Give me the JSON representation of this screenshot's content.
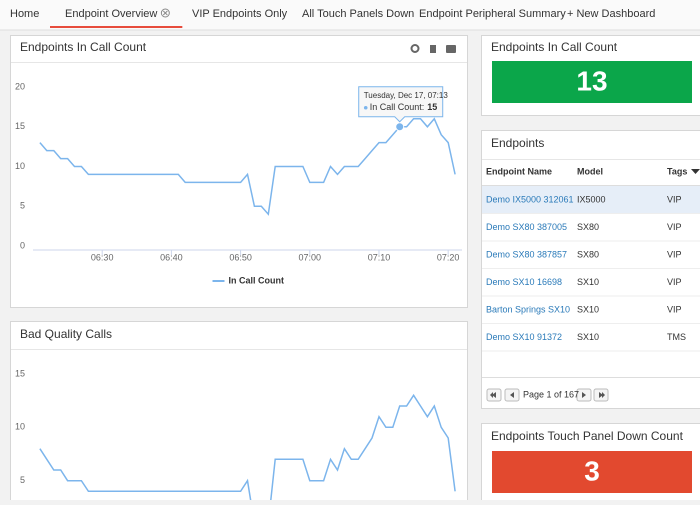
{
  "tabs": [
    "Home",
    "Endpoint Overview",
    "VIP Endpoints Only",
    "All Touch Panels Down",
    "Endpoint Peripheral Summary",
    "+ New Dashboard"
  ],
  "active_tab": 1,
  "chart_data": [
    {
      "type": "line",
      "title": "Endpoints In Call Count",
      "x": [
        "06:21",
        "06:22",
        "06:23",
        "06:24",
        "06:25",
        "06:26",
        "06:27",
        "06:28",
        "06:29",
        "06:30",
        "06:31",
        "06:32",
        "06:33",
        "06:34",
        "06:35",
        "06:36",
        "06:37",
        "06:38",
        "06:39",
        "06:40",
        "06:41",
        "06:42",
        "06:43",
        "06:44",
        "06:45",
        "06:46",
        "06:47",
        "06:48",
        "06:49",
        "06:50",
        "06:51",
        "06:52",
        "06:53",
        "06:54",
        "06:55",
        "06:56",
        "06:57",
        "06:58",
        "06:59",
        "07:00",
        "07:01",
        "07:02",
        "07:03",
        "07:04",
        "07:05",
        "07:06",
        "07:07",
        "07:08",
        "07:09",
        "07:10",
        "07:11",
        "07:12",
        "07:13",
        "07:14",
        "07:15",
        "07:16",
        "07:17",
        "07:18",
        "07:19",
        "07:20",
        "07:21"
      ],
      "series": [
        {
          "name": "In Call Count",
          "color": "#7cb5ec",
          "values": [
            13,
            12,
            12,
            11,
            11,
            10,
            10,
            9,
            9,
            9,
            9,
            9,
            9,
            9,
            9,
            9,
            9,
            9,
            9,
            9,
            9,
            8,
            8,
            8,
            8,
            8,
            8,
            8,
            8,
            8,
            9,
            5,
            5,
            4,
            10,
            10,
            10,
            10,
            10,
            8,
            8,
            8,
            10,
            9,
            10,
            10,
            10,
            11,
            12,
            13,
            13,
            14,
            15,
            15,
            16,
            16,
            15,
            16,
            14,
            13,
            9
          ]
        }
      ],
      "xlim": [
        "06:20",
        "07:22"
      ],
      "xticks": [
        "06:30",
        "06:40",
        "06:50",
        "07:00",
        "07:10",
        "07:20"
      ],
      "ylim": [
        0,
        20
      ],
      "yticks": [
        0,
        5,
        10,
        15,
        20
      ],
      "grid": false,
      "legend": "bottom",
      "tooltip": {
        "date": "Tuesday, Dec 17, 07:13",
        "label": "In Call Count:",
        "value": 15,
        "index": 52
      }
    },
    {
      "type": "line",
      "title": "Bad Quality Calls",
      "x": [
        "06:21",
        "06:22",
        "06:23",
        "06:24",
        "06:25",
        "06:26",
        "06:27",
        "06:28",
        "06:29",
        "06:30",
        "06:31",
        "06:32",
        "06:33",
        "06:34",
        "06:35",
        "06:36",
        "06:37",
        "06:38",
        "06:39",
        "06:40",
        "06:41",
        "06:42",
        "06:43",
        "06:44",
        "06:45",
        "06:46",
        "06:47",
        "06:48",
        "06:49",
        "06:50",
        "06:51",
        "06:52",
        "06:53",
        "06:54",
        "06:55",
        "06:56",
        "06:57",
        "06:58",
        "06:59",
        "07:00",
        "07:01",
        "07:02",
        "07:03",
        "07:04",
        "07:05",
        "07:06",
        "07:07",
        "07:08",
        "07:09",
        "07:10",
        "07:11",
        "07:12",
        "07:13",
        "07:14",
        "07:15",
        "07:16",
        "07:17",
        "07:18",
        "07:19",
        "07:20",
        "07:21"
      ],
      "series": [
        {
          "name": "Bad Quality Calls",
          "color": "#7cb5ec",
          "values": [
            8,
            7,
            6,
            6,
            5,
            5,
            5,
            4,
            4,
            4,
            4,
            4,
            4,
            4,
            4,
            4,
            4,
            4,
            4,
            4,
            4,
            4,
            4,
            4,
            4,
            4,
            4,
            4,
            4,
            4,
            5,
            1,
            1,
            1,
            7,
            7,
            7,
            7,
            7,
            5,
            5,
            5,
            7,
            6,
            8,
            7,
            7,
            8,
            9,
            11,
            10,
            10,
            12,
            12,
            13,
            12,
            11,
            12,
            10,
            9,
            4
          ]
        }
      ],
      "xlim": [
        "06:20",
        "07:22"
      ],
      "ylim": [
        0,
        15
      ],
      "yticks": [
        5,
        10,
        15
      ],
      "grid": false
    }
  ],
  "in_call_widget": {
    "title": "Endpoints In Call Count",
    "value": 13,
    "color": "#0ba64a"
  },
  "endpoints": {
    "title": "Endpoints",
    "columns": [
      "Endpoint Name",
      "Model",
      "Tags"
    ],
    "rows": [
      [
        "Demo IX5000 312061",
        "IX5000",
        "VIP"
      ],
      [
        "Demo SX80 387005",
        "SX80",
        "VIP"
      ],
      [
        "Demo SX80 387857",
        "SX80",
        "VIP"
      ],
      [
        "Demo SX10 16698",
        "SX10",
        "VIP"
      ],
      [
        "Barton Springs SX10",
        "SX10",
        "VIP"
      ],
      [
        "Demo SX10 91372",
        "SX10",
        "TMS"
      ]
    ],
    "pager": "Page 1 of 167"
  },
  "touch_widget": {
    "title": "Endpoints Touch Panel Down Count",
    "value": 3,
    "color": "#e2492f"
  }
}
